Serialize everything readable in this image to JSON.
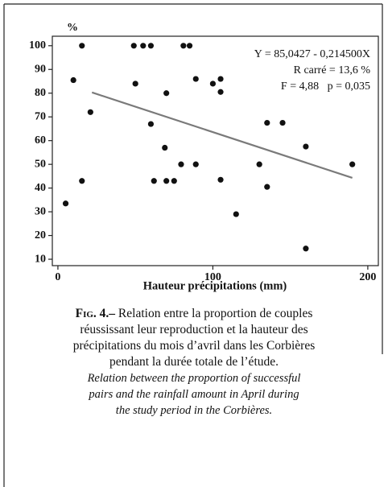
{
  "chart_data": {
    "type": "scatter",
    "y_unit": "%",
    "xlabel": "Hauteur précipitations (mm)",
    "annotations": [
      "Y = 85,0427 - 0,214500X",
      "R carré = 13,6 %",
      "F = 4,88   p = 0,035"
    ],
    "x": [
      5,
      10,
      15.5,
      15.5,
      21,
      49,
      50,
      55,
      60,
      60,
      62,
      70,
      69,
      70,
      75,
      79.5,
      81,
      85,
      89,
      89,
      100,
      105,
      105,
      105,
      115,
      130,
      135,
      135,
      145,
      160,
      160,
      190
    ],
    "values": [
      33.5,
      85.5,
      100,
      43,
      72,
      100,
      84,
      100,
      100,
      67,
      43,
      80,
      57,
      43,
      43,
      50,
      100,
      100,
      86,
      50,
      84,
      86,
      80.5,
      43.5,
      29,
      50,
      67.5,
      40.5,
      67.5,
      57.5,
      14.5,
      50
    ],
    "color": "#111111",
    "trend": {
      "x": [
        22,
        190
      ],
      "y": [
        80.3,
        44.3
      ],
      "color": "#7a7a7a"
    },
    "xlim": [
      -3.6,
      206.8
    ],
    "ylim": [
      7.3,
      104
    ],
    "xticks": [
      0,
      100,
      200
    ],
    "yticks": [
      10,
      20,
      30,
      40,
      50,
      60,
      70,
      80,
      90,
      100
    ]
  },
  "caption": {
    "label": "Fig. 4.–",
    "fr_lines": [
      "Relation entre la proportion de couples",
      "réussissant leur reproduction et la hauteur des",
      "précipitations du mois d’avril dans les Corbières",
      "pendant la durée totale de l’étude."
    ],
    "en_lines": [
      "Relation between the proportion of successful",
      "pairs and the rainfall amount in April during",
      "the study period in the Corbières."
    ]
  }
}
